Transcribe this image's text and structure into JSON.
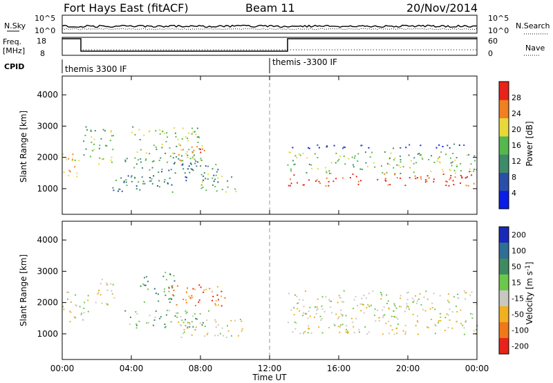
{
  "header": {
    "title": "Fort Hays East (fitACF)",
    "beam": "Beam 11",
    "date": "20/Nov/2014"
  },
  "top_panels": {
    "noise": {
      "left_label": "N.Sky",
      "right_label": "N.Search",
      "left_ticks": [
        "10^5",
        "10^0"
      ],
      "right_ticks": [
        "10^5",
        "10^0"
      ]
    },
    "freq": {
      "left_label_1": "Freq.",
      "left_label_2": "[MHz]",
      "right_label": "Nave",
      "left_ticks": [
        "18",
        "8"
      ],
      "right_ticks": [
        "60",
        "0"
      ]
    },
    "cpid": {
      "label": "CPID",
      "segments": [
        {
          "start": 0,
          "name": "themis 3300 IF"
        },
        {
          "start": 12,
          "name": "themis -3300 IF"
        }
      ]
    }
  },
  "chart_data": [
    {
      "type": "heatmap",
      "name": "Power",
      "ylabel": "Slant Range [km]",
      "xlabel": "",
      "xlim": [
        0,
        24
      ],
      "ylim": [
        180,
        4600
      ],
      "yticks": [
        1000,
        2000,
        3000,
        4000
      ],
      "colorbar": {
        "label": "Power [dB]",
        "ticks": [
          "4",
          "8",
          "12",
          "16",
          "20",
          "24",
          "28"
        ],
        "colors": [
          "#0a1ee6",
          "#2b4ea8",
          "#3f8a6a",
          "#56b84c",
          "#e8d83a",
          "#f08020",
          "#e8231a"
        ]
      },
      "blobs": [
        {
          "t0": 0.0,
          "t1": 1.0,
          "r0": 1300,
          "r1": 2200,
          "level": 4
        },
        {
          "t0": 1.2,
          "t1": 3.0,
          "r0": 1800,
          "r1": 3000,
          "level": 3
        },
        {
          "t0": 2.8,
          "t1": 6.5,
          "r0": 900,
          "r1": 1400,
          "level": 2
        },
        {
          "t0": 4.0,
          "t1": 8.0,
          "r0": 1900,
          "r1": 3000,
          "level": 3
        },
        {
          "t0": 6.5,
          "t1": 8.3,
          "r0": 1900,
          "r1": 2500,
          "level": 5
        },
        {
          "t0": 3.5,
          "t1": 9.0,
          "r0": 1200,
          "r1": 2000,
          "level": 2
        },
        {
          "t0": 8.0,
          "t1": 10.2,
          "r0": 900,
          "r1": 1500,
          "level": 3
        },
        {
          "t0": 13.0,
          "t1": 24.0,
          "r0": 1100,
          "r1": 1500,
          "level": 6
        },
        {
          "t0": 13.0,
          "t1": 24.0,
          "r0": 1500,
          "r1": 2200,
          "level": 3
        },
        {
          "t0": 13.0,
          "t1": 24.0,
          "r0": 2300,
          "r1": 2450,
          "level": 1
        }
      ]
    },
    {
      "type": "heatmap",
      "name": "Velocity",
      "ylabel": "Slant Range [km]",
      "xlabel": "Time UT",
      "xlim": [
        0,
        24
      ],
      "ylim": [
        180,
        4600
      ],
      "yticks": [
        1000,
        2000,
        3000,
        4000
      ],
      "xticks": [
        "00:00",
        "04:00",
        "08:00",
        "12:00",
        "16:00",
        "20:00",
        "00:00"
      ],
      "colorbar": {
        "label": "Velocity [m s^-1]",
        "ticks": [
          "200",
          "100",
          "50",
          "15",
          "-15",
          "-50",
          "-100",
          "-200"
        ],
        "colors": [
          "#1a2ab8",
          "#2f6e96",
          "#3f8a60",
          "#6cc84a",
          "#c8c8c0",
          "#f0b020",
          "#f07818",
          "#e8231a"
        ]
      },
      "blobs": [
        {
          "t0": 0.0,
          "t1": 1.5,
          "r0": 1400,
          "r1": 2400,
          "level": 4
        },
        {
          "t0": 1.8,
          "t1": 3.0,
          "r0": 1800,
          "r1": 2800,
          "level": 4
        },
        {
          "t0": 4.5,
          "t1": 6.5,
          "r0": 2000,
          "r1": 3000,
          "level": 2
        },
        {
          "t0": 6.0,
          "t1": 9.5,
          "r0": 1900,
          "r1": 2600,
          "level": 6
        },
        {
          "t0": 3.5,
          "t1": 8.5,
          "r0": 1200,
          "r1": 1800,
          "level": 3
        },
        {
          "t0": 6.5,
          "t1": 10.5,
          "r0": 900,
          "r1": 1500,
          "level": 4
        },
        {
          "t0": 13.0,
          "t1": 24.0,
          "r0": 1000,
          "r1": 2400,
          "level": 4
        }
      ]
    }
  ]
}
